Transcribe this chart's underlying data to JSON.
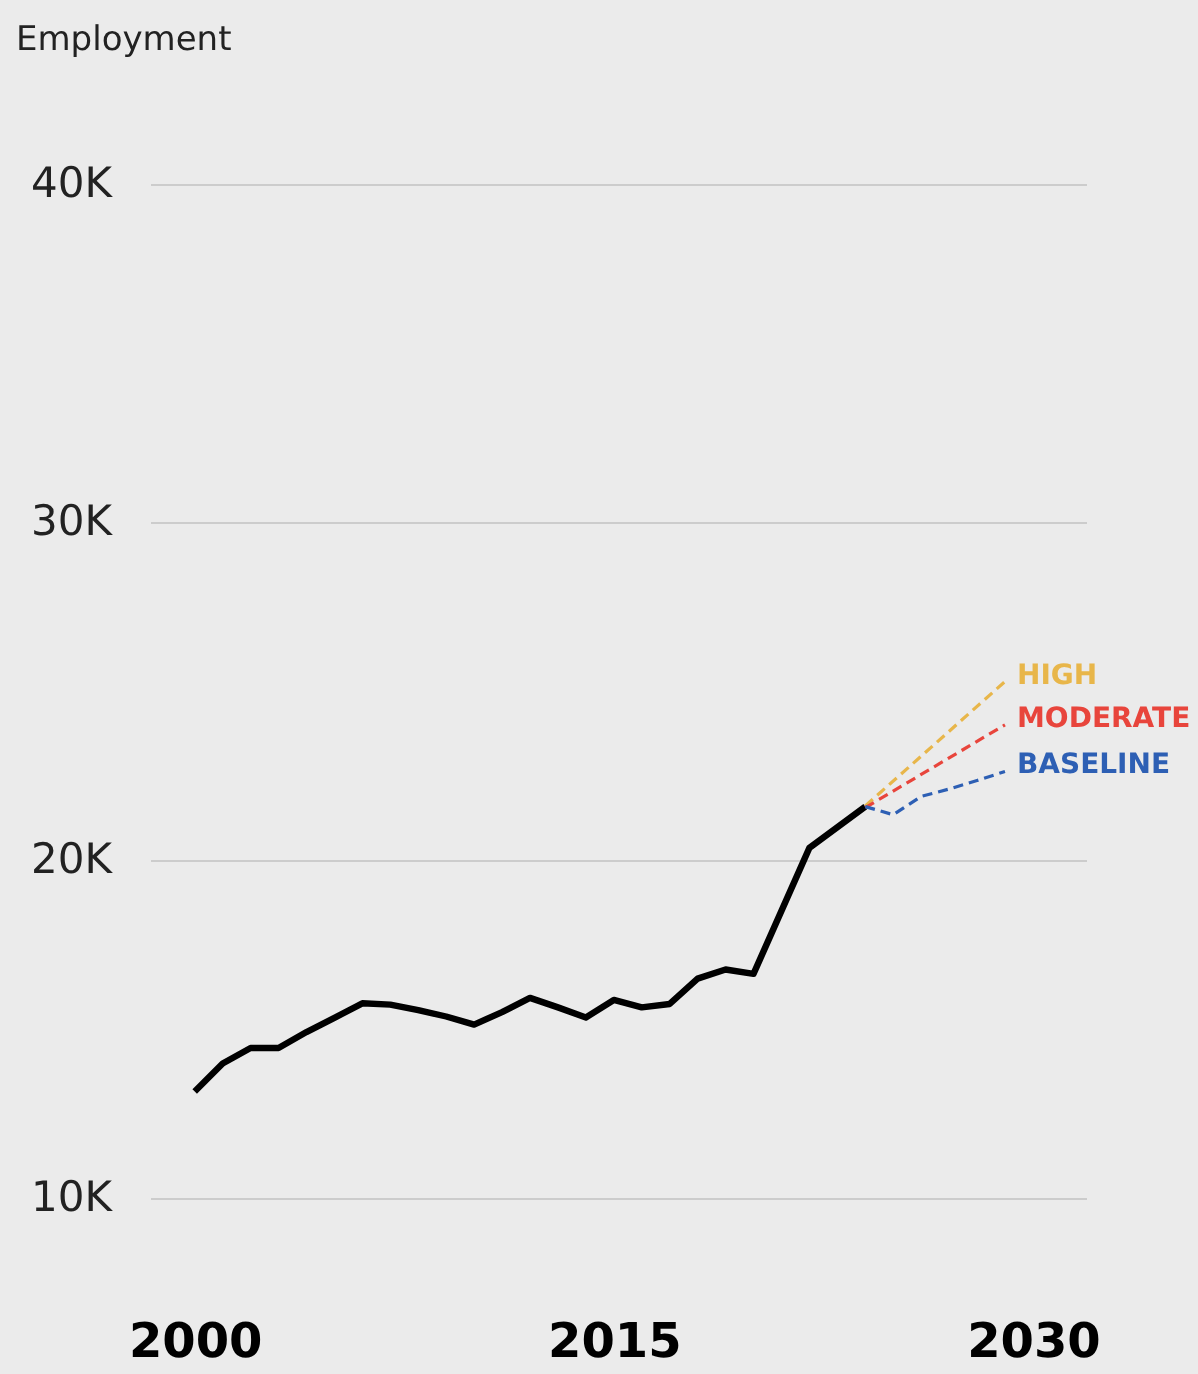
{
  "chart_data": {
    "type": "line",
    "ylabel": "Employment",
    "xlim": [
      1998.4,
      2031.9
    ],
    "xticks": [
      2000,
      2015,
      2030
    ],
    "ylim": [
      10,
      40
    ],
    "yticks": [
      {
        "value": 10,
        "label": "10K"
      },
      {
        "value": 20,
        "label": "20K"
      },
      {
        "value": 30,
        "label": "30K"
      },
      {
        "value": 40,
        "label": "40K"
      }
    ],
    "grid": "y",
    "legend": false,
    "series": [
      {
        "color": "#000000",
        "line_style": "solid",
        "x": [
          2000,
          2001,
          2002,
          2003,
          2004,
          2005,
          2006,
          2007,
          2008,
          2009,
          2010,
          2011,
          2012,
          2013,
          2014,
          2015,
          2016,
          2017,
          2018,
          2019,
          2020,
          2022,
          2024
        ],
        "values": [
          13.15,
          13.98,
          14.44,
          14.44,
          14.91,
          15.33,
          15.76,
          15.72,
          15.56,
          15.37,
          15.13,
          15.5,
          15.92,
          15.64,
          15.34,
          15.86,
          15.64,
          15.74,
          16.49,
          16.76,
          16.63,
          20.36,
          21.58
        ]
      },
      {
        "name": "HIGH",
        "color": "#e8b64a",
        "line_style": "dashed",
        "x": [
          2024,
          2029
        ],
        "values": [
          21.6,
          25.28
        ]
      },
      {
        "name": "MODERATE",
        "color": "#e8453c",
        "line_style": "dashed",
        "x": [
          2024,
          2029
        ],
        "values": [
          21.55,
          24.0
        ]
      },
      {
        "name": "BASELINE",
        "color": "#2d5fb4",
        "line_style": "dashed",
        "x": [
          2024,
          2025,
          2026,
          2027,
          2028,
          2029
        ],
        "values": [
          21.58,
          21.34,
          21.88,
          22.1,
          22.35,
          22.62
        ]
      }
    ]
  }
}
